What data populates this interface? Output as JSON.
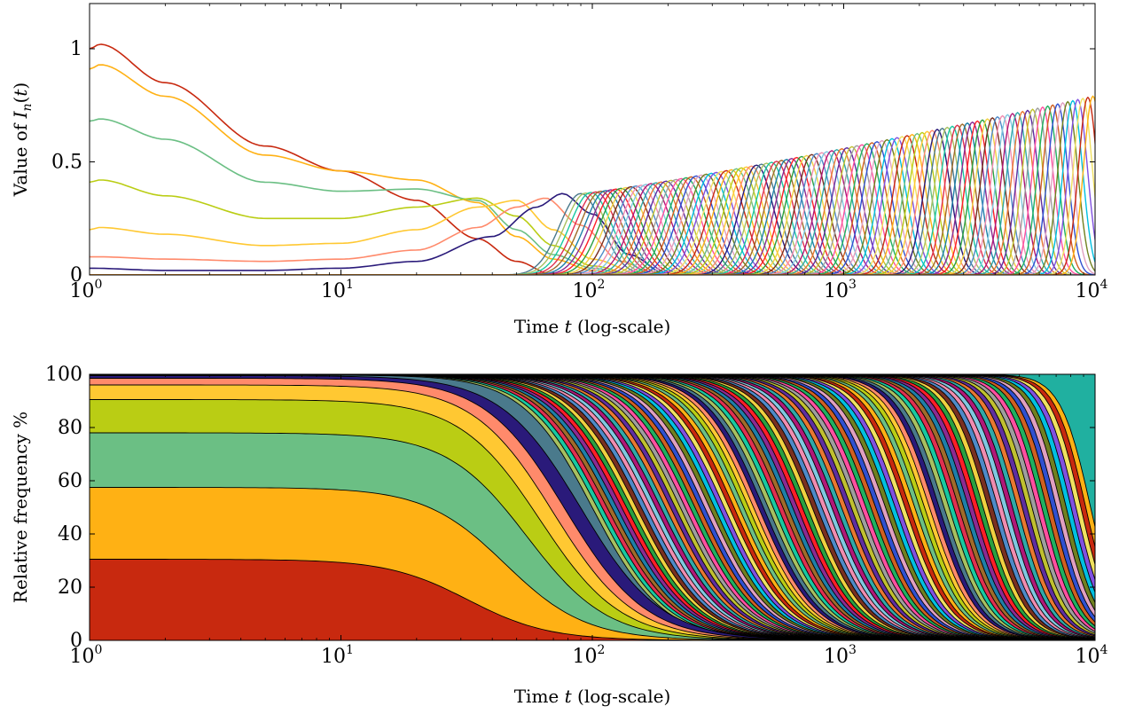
{
  "chart_data": [
    {
      "type": "line",
      "xlabel": "Time t (log-scale)",
      "ylabel": "Value of I_n(t)",
      "xscale": "log",
      "xlim": [
        1,
        10000
      ],
      "ylim": [
        0,
        1.2
      ],
      "x_ticks": [
        "10^0",
        "10^1",
        "10^2",
        "10^3",
        "10^4"
      ],
      "y_ticks": [
        "0",
        "0.5",
        "1"
      ],
      "grid": false,
      "series_count": 110,
      "description_note": "",
      "series": [
        {
          "color": "#C8290F",
          "x": [
            1,
            1.1,
            2,
            5,
            10,
            20,
            35,
            50,
            70
          ],
          "values": [
            1.0,
            1.02,
            0.85,
            0.57,
            0.46,
            0.33,
            0.16,
            0.06,
            0.0
          ]
        },
        {
          "color": "#FFB114",
          "x": [
            1,
            1.1,
            2,
            5,
            10,
            20,
            35,
            50,
            70,
            100,
            130
          ],
          "values": [
            0.91,
            0.93,
            0.79,
            0.53,
            0.46,
            0.42,
            0.32,
            0.17,
            0.07,
            0.02,
            0.0
          ]
        },
        {
          "color": "#6BBF84",
          "x": [
            1,
            1.1,
            2,
            5,
            10,
            20,
            35,
            50,
            70,
            100,
            140
          ],
          "values": [
            0.68,
            0.69,
            0.6,
            0.41,
            0.37,
            0.38,
            0.33,
            0.2,
            0.09,
            0.03,
            0.0
          ]
        },
        {
          "color": "#BACD14",
          "x": [
            1,
            1.1,
            2,
            5,
            10,
            20,
            35,
            50,
            70,
            100,
            150
          ],
          "values": [
            0.41,
            0.42,
            0.35,
            0.25,
            0.25,
            0.3,
            0.34,
            0.26,
            0.13,
            0.04,
            0.0
          ]
        },
        {
          "color": "#FFC832",
          "x": [
            1,
            1.1,
            2,
            5,
            10,
            20,
            35,
            50,
            70,
            100,
            160
          ],
          "values": [
            0.2,
            0.21,
            0.18,
            0.13,
            0.14,
            0.2,
            0.3,
            0.33,
            0.2,
            0.07,
            0.0
          ]
        },
        {
          "color": "#FF8A6B",
          "x": [
            1,
            1.1,
            2,
            5,
            10,
            20,
            35,
            50,
            65,
            90,
            130,
            180
          ],
          "values": [
            0.08,
            0.08,
            0.07,
            0.06,
            0.07,
            0.11,
            0.21,
            0.3,
            0.34,
            0.22,
            0.06,
            0.0
          ]
        },
        {
          "color": "#2A1A7A",
          "x": [
            1,
            2,
            5,
            10,
            20,
            40,
            60,
            76,
            100,
            140,
            200
          ],
          "values": [
            0.03,
            0.02,
            0.02,
            0.03,
            0.06,
            0.17,
            0.3,
            0.36,
            0.27,
            0.09,
            0.0
          ]
        }
      ]
    },
    {
      "type": "area",
      "stacked": true,
      "percent": true,
      "xlabel": "Time t (log-scale)",
      "ylabel": "Relative frequency %",
      "xscale": "log",
      "xlim": [
        1,
        10000
      ],
      "ylim": [
        0,
        100
      ],
      "x_ticks": [
        "10^0",
        "10^1",
        "10^2",
        "10^3",
        "10^4"
      ],
      "y_ticks": [
        "0",
        "20",
        "40",
        "60",
        "80",
        "100"
      ],
      "grid": false,
      "layer_count": 110,
      "layers": [
        {
          "color": "#C8290F",
          "start_value": 30.5,
          "midpoint_x": 32
        },
        {
          "color": "#FFB114",
          "start_value": 57.5,
          "midpoint_x": 45
        },
        {
          "color": "#6BBF84",
          "start_value": 78,
          "midpoint_x": 55
        },
        {
          "color": "#BACD14",
          "start_value": 90.5,
          "midpoint_x": 62
        },
        {
          "color": "#FFC832",
          "start_value": 96,
          "midpoint_x": 70
        },
        {
          "color": "#FF8A6B",
          "start_value": 98.5,
          "midpoint_x": 78
        },
        {
          "color": "#2A1A7A",
          "start_value": 99.5,
          "midpoint_x": 90
        }
      ]
    }
  ],
  "palette": [
    "#C8290F",
    "#FFB114",
    "#6BBF84",
    "#BACD14",
    "#FFC832",
    "#FF8A6B",
    "#2A1A7A",
    "#4A7A8C",
    "#A7C060",
    "#18C8A0",
    "#E03050",
    "#A06B2A",
    "#1E7FA8",
    "#8B2A92",
    "#FF1E28",
    "#2AA040",
    "#F0D040",
    "#7A3020",
    "#4E8AC8",
    "#F08CB0",
    "#7FC8E0",
    "#B01878",
    "#30A8A8",
    "#E87830",
    "#5F2EA0",
    "#C0C030",
    "#9E9E9E",
    "#FF4FA0",
    "#20B060",
    "#D06020",
    "#3050D0",
    "#E0A0C0",
    "#708020",
    "#00C0E0",
    "#8050E0",
    "#F0E060"
  ]
}
